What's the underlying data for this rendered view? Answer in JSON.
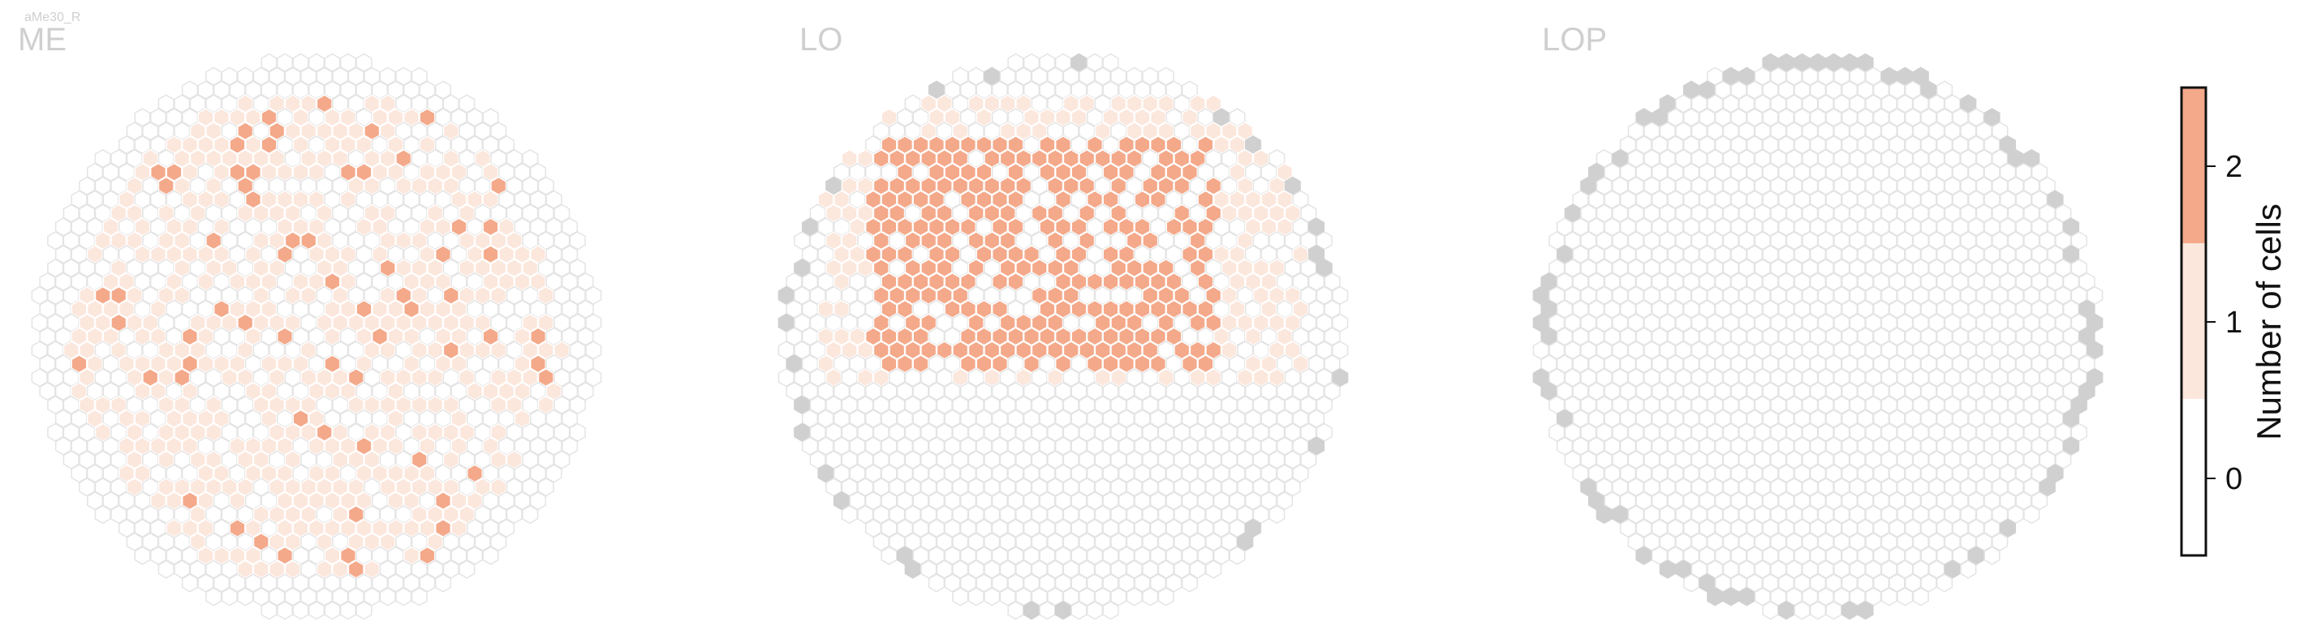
{
  "figure": {
    "cell_type_label": "aMe30_R"
  },
  "chart_data": {
    "type": "heatmap",
    "panels": [
      {
        "name": "ME",
        "occupied_range": [
          0,
          2
        ]
      },
      {
        "name": "LO",
        "occupied_range": [
          0,
          2
        ]
      },
      {
        "name": "LOP",
        "occupied_range": [
          0,
          0
        ]
      }
    ],
    "colorbar": {
      "label": "Number of cells",
      "ticks": [
        "0",
        "1",
        "2"
      ],
      "levels": [
        {
          "value": 0,
          "color": "#ffffff"
        },
        {
          "value": 1,
          "color": "#fce7dd"
        },
        {
          "value": 2,
          "color": "#f4a98a"
        }
      ]
    },
    "background_cell": {
      "fill": "#ffffff",
      "stroke": "#e4e4e4"
    },
    "edge_cell": {
      "fill": "#d0d0d0",
      "stroke": "#d0d0d0"
    }
  }
}
